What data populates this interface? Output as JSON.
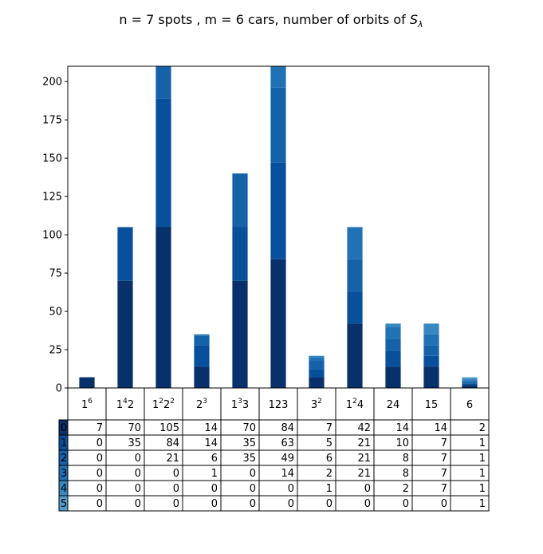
{
  "chart_data": {
    "type": "bar",
    "stacked": true,
    "title": "n = 7 spots , m = 6 cars, number of orbits of S_λ",
    "title_main": "n = 7 spots , m = 6 cars, number of orbits of ",
    "title_symbol": "S",
    "title_subscript": "λ",
    "categories": [
      {
        "base": "1",
        "sup": "6",
        "rest": ""
      },
      {
        "base": "1",
        "sup": "4",
        "rest": "2"
      },
      {
        "base": "1",
        "sup": "2",
        "rest": "2",
        "sup2": "2"
      },
      {
        "base": "2",
        "sup": "3",
        "rest": ""
      },
      {
        "base": "1",
        "sup": "3",
        "rest": "3"
      },
      {
        "base": "123",
        "sup": "",
        "rest": ""
      },
      {
        "base": "3",
        "sup": "2",
        "rest": ""
      },
      {
        "base": "1",
        "sup": "2",
        "rest": "4"
      },
      {
        "base": "24",
        "sup": "",
        "rest": ""
      },
      {
        "base": "15",
        "sup": "",
        "rest": ""
      },
      {
        "base": "6",
        "sup": "",
        "rest": ""
      }
    ],
    "series": [
      {
        "name": "0",
        "color": "#08306b",
        "values": [
          7,
          70,
          105,
          14,
          70,
          84,
          7,
          42,
          14,
          14,
          2
        ]
      },
      {
        "name": "1",
        "color": "#08509b",
        "values": [
          0,
          35,
          84,
          14,
          35,
          63,
          5,
          21,
          10,
          7,
          1
        ]
      },
      {
        "name": "2",
        "color": "#1562a9",
        "values": [
          0,
          0,
          21,
          6,
          35,
          49,
          6,
          21,
          8,
          7,
          1
        ]
      },
      {
        "name": "3",
        "color": "#2171b5",
        "values": [
          0,
          0,
          0,
          1,
          0,
          14,
          2,
          21,
          8,
          7,
          1
        ]
      },
      {
        "name": "4",
        "color": "#3787c0",
        "values": [
          0,
          0,
          0,
          0,
          0,
          0,
          1,
          0,
          2,
          7,
          1
        ]
      },
      {
        "name": "5",
        "color": "#539ecd",
        "values": [
          0,
          0,
          0,
          0,
          0,
          0,
          0,
          0,
          0,
          0,
          1
        ]
      }
    ],
    "ylim": [
      0,
      210
    ],
    "yticks": [
      0,
      25,
      50,
      75,
      100,
      125,
      150,
      175,
      200
    ],
    "grid": false,
    "xlabel": "",
    "ylabel": ""
  }
}
